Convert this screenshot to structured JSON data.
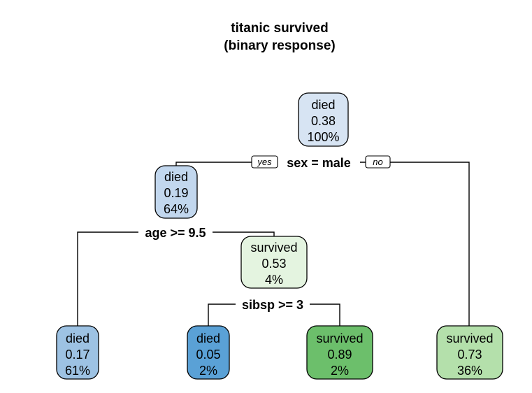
{
  "title": {
    "line1": "titanic survived",
    "line2": "(binary response)"
  },
  "branch_labels": {
    "yes": "yes",
    "no": "no"
  },
  "splits": [
    {
      "id": "split-sex",
      "label": "sex = male"
    },
    {
      "id": "split-age",
      "label": "age >= 9.5"
    },
    {
      "id": "split-sibsp",
      "label": "sibsp >= 3"
    }
  ],
  "nodes": [
    {
      "id": "root",
      "class": "died",
      "prob": "0.38",
      "pct": "100%",
      "fill": "#d7e4f3"
    },
    {
      "id": "node-male",
      "class": "died",
      "prob": "0.19",
      "pct": "64%",
      "fill": "#c2d7ee"
    },
    {
      "id": "node-young",
      "class": "survived",
      "prob": "0.53",
      "pct": "4%",
      "fill": "#e4f4e0"
    },
    {
      "id": "leaf-older-male",
      "class": "died",
      "prob": "0.17",
      "pct": "61%",
      "fill": "#9dc2e3"
    },
    {
      "id": "leaf-large-family",
      "class": "died",
      "prob": "0.05",
      "pct": "2%",
      "fill": "#5aa1d6"
    },
    {
      "id": "leaf-small-family",
      "class": "survived",
      "prob": "0.89",
      "pct": "2%",
      "fill": "#6cbf6b"
    },
    {
      "id": "leaf-female",
      "class": "survived",
      "prob": "0.73",
      "pct": "36%",
      "fill": "#b4e0ab"
    }
  ]
}
